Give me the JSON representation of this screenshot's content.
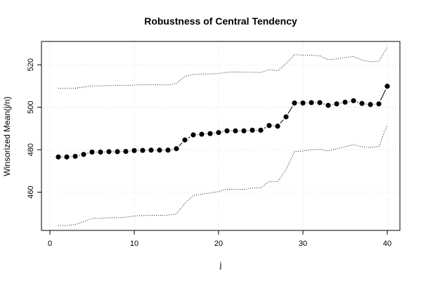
{
  "chart_data": {
    "type": "line",
    "title": "Robustness of Central Tendency",
    "xlabel": "j",
    "ylabel": "Winsorized Mean(j/n)",
    "xlim": [
      -1,
      41.5
    ],
    "ylim": [
      442,
      531
    ],
    "x_ticks": [
      0,
      10,
      20,
      30,
      40
    ],
    "y_ticks": [
      460,
      480,
      500,
      520
    ],
    "grid": true,
    "x": [
      1,
      2,
      3,
      4,
      5,
      6,
      7,
      8,
      9,
      10,
      11,
      12,
      13,
      14,
      15,
      16,
      17,
      18,
      19,
      20,
      21,
      22,
      23,
      24,
      25,
      26,
      27,
      28,
      29,
      30,
      31,
      32,
      33,
      34,
      35,
      36,
      37,
      38,
      39,
      40
    ],
    "series": [
      {
        "values": [
          476.6,
          476.6,
          476.9,
          477.8,
          478.9,
          478.9,
          479.1,
          479.1,
          479.2,
          479.6,
          479.7,
          479.8,
          479.8,
          479.8,
          480.5,
          484.6,
          487.0,
          487.3,
          487.6,
          488.1,
          488.9,
          488.9,
          488.9,
          489.2,
          489.2,
          491.4,
          491.1,
          495.5,
          502.0,
          502.0,
          502.2,
          502.2,
          500.9,
          501.6,
          502.4,
          503.1,
          501.8,
          501.3,
          501.6,
          509.9
        ],
        "style": "points-line"
      },
      {
        "values": [
          508.9,
          508.9,
          509.0,
          509.5,
          510.1,
          510.1,
          510.2,
          510.3,
          510.3,
          510.5,
          510.6,
          510.6,
          510.6,
          510.5,
          511.3,
          514.5,
          515.5,
          515.6,
          515.7,
          515.9,
          516.5,
          516.6,
          516.5,
          516.5,
          516.4,
          517.8,
          517.1,
          520.6,
          524.8,
          524.6,
          524.5,
          524.2,
          522.4,
          522.8,
          523.5,
          523.9,
          522.2,
          521.4,
          521.7,
          528.2
        ],
        "style": "dotted"
      },
      {
        "values": [
          444.3,
          444.3,
          444.8,
          446.1,
          447.7,
          447.7,
          448.0,
          448.0,
          448.2,
          448.8,
          449.0,
          449.1,
          449.1,
          449.2,
          449.7,
          454.8,
          458.5,
          459.1,
          459.6,
          460.3,
          461.4,
          461.4,
          461.3,
          461.9,
          462.1,
          465.0,
          465.0,
          470.5,
          479.2,
          479.4,
          480.0,
          480.2,
          479.4,
          480.5,
          481.4,
          482.4,
          481.4,
          481.1,
          481.5,
          491.7
        ],
        "style": "dotted"
      }
    ]
  }
}
